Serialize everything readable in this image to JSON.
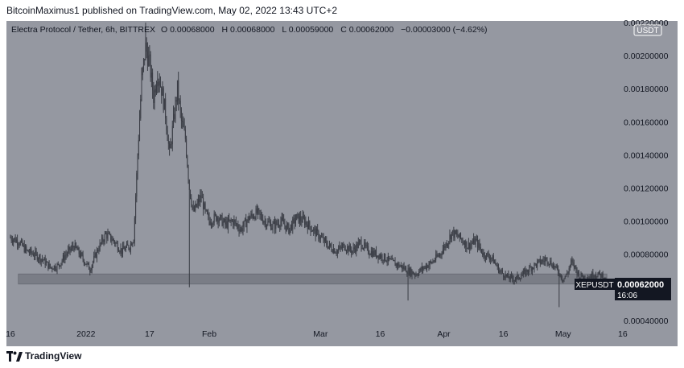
{
  "header": {
    "publisher_line": "BitcoinMaximus1 published on TradingView.com, May 02, 2022 13:43 UTC+2"
  },
  "legend": {
    "symbol_line": "Electra Protocol / Tether, 6h, BITTREX",
    "o_label": "O",
    "o_value": "0.00068000",
    "h_label": "H",
    "h_value": "0.00068000",
    "l_label": "L",
    "l_value": "0.00059000",
    "c_label": "C",
    "c_value": "0.00062000",
    "change": "−0.00003000 (−4.62%)"
  },
  "currency_badge": "USDT",
  "price_tag": {
    "symbol": "XEPUSDT",
    "price": "0.00062000",
    "countdown": "16:06"
  },
  "footer": {
    "brand": "TradingView"
  },
  "colors": {
    "plot_background": "#9598a1",
    "candles": "#3a3d45",
    "support_zone": "#7a7d86",
    "price_tag_bg": "#131722"
  },
  "chart_data": {
    "type": "candlestick",
    "instrument": "Electra Protocol / Tether",
    "ticker": "XEPUSDT",
    "timeframe": "6h",
    "exchange": "BITTREX",
    "y_axis": {
      "ticks": [
        "0.00040000",
        "0.00060000",
        "0.00080000",
        "0.00100000",
        "0.00120000",
        "0.00140000",
        "0.00160000",
        "0.00180000",
        "0.00200000",
        "0.00220000"
      ],
      "ylim": [
        0.00037,
        0.00221
      ]
    },
    "x_axis": {
      "ticks": [
        "16",
        "2022",
        "17",
        "Feb",
        "Mar",
        "16",
        "Apr",
        "16",
        "May",
        "16"
      ],
      "xlim_days": [
        -20,
        133
      ]
    },
    "support_zone": {
      "low": 0.00062,
      "high": 0.00068
    },
    "price_path": [
      {
        "day": -19,
        "price": 0.0009
      },
      {
        "day": -17,
        "price": 0.00088
      },
      {
        "day": -15,
        "price": 0.00082
      },
      {
        "day": -13,
        "price": 0.0008
      },
      {
        "day": -11,
        "price": 0.00077
      },
      {
        "day": -9,
        "price": 0.00072
      },
      {
        "day": -7,
        "price": 0.00073
      },
      {
        "day": -5,
        "price": 0.0008
      },
      {
        "day": -3,
        "price": 0.00085
      },
      {
        "day": -1,
        "price": 0.00078
      },
      {
        "day": 1,
        "price": 0.00071
      },
      {
        "day": 3,
        "price": 0.00083
      },
      {
        "day": 5,
        "price": 0.00092
      },
      {
        "day": 7,
        "price": 0.00088
      },
      {
        "day": 9,
        "price": 0.00082
      },
      {
        "day": 11,
        "price": 0.00085
      },
      {
        "day": 12,
        "price": 0.0009
      },
      {
        "day": 13,
        "price": 0.0014
      },
      {
        "day": 14,
        "price": 0.00185
      },
      {
        "day": 15,
        "price": 0.00205
      },
      {
        "day": 16,
        "price": 0.00195
      },
      {
        "day": 17,
        "price": 0.00175
      },
      {
        "day": 18,
        "price": 0.0019
      },
      {
        "day": 19,
        "price": 0.0018
      },
      {
        "day": 20,
        "price": 0.00165
      },
      {
        "day": 21,
        "price": 0.0014
      },
      {
        "day": 22,
        "price": 0.0016
      },
      {
        "day": 23,
        "price": 0.0018
      },
      {
        "day": 24,
        "price": 0.0016
      },
      {
        "day": 25,
        "price": 0.0015
      },
      {
        "day": 26,
        "price": 0.0012
      },
      {
        "day": 27,
        "price": 0.00105
      },
      {
        "day": 28,
        "price": 0.0011
      },
      {
        "day": 29,
        "price": 0.00115
      },
      {
        "day": 30,
        "price": 0.00105
      },
      {
        "day": 31,
        "price": 0.001
      },
      {
        "day": 33,
        "price": 0.00103
      },
      {
        "day": 35,
        "price": 0.00098
      },
      {
        "day": 37,
        "price": 0.001
      },
      {
        "day": 39,
        "price": 0.00095
      },
      {
        "day": 41,
        "price": 0.00102
      },
      {
        "day": 43,
        "price": 0.00105
      },
      {
        "day": 45,
        "price": 0.001
      },
      {
        "day": 47,
        "price": 0.00097
      },
      {
        "day": 49,
        "price": 0.001
      },
      {
        "day": 51,
        "price": 0.00095
      },
      {
        "day": 53,
        "price": 0.00102
      },
      {
        "day": 55,
        "price": 0.001
      },
      {
        "day": 57,
        "price": 0.00095
      },
      {
        "day": 59,
        "price": 0.0009
      },
      {
        "day": 61,
        "price": 0.00085
      },
      {
        "day": 63,
        "price": 0.00082
      },
      {
        "day": 65,
        "price": 0.00085
      },
      {
        "day": 67,
        "price": 0.00082
      },
      {
        "day": 69,
        "price": 0.00087
      },
      {
        "day": 71,
        "price": 0.00082
      },
      {
        "day": 73,
        "price": 0.0008
      },
      {
        "day": 75,
        "price": 0.00078
      },
      {
        "day": 77,
        "price": 0.00075
      },
      {
        "day": 79,
        "price": 0.00073
      },
      {
        "day": 81,
        "price": 0.0007
      },
      {
        "day": 83,
        "price": 0.00068
      },
      {
        "day": 85,
        "price": 0.00072
      },
      {
        "day": 87,
        "price": 0.00075
      },
      {
        "day": 89,
        "price": 0.0008
      },
      {
        "day": 91,
        "price": 0.00088
      },
      {
        "day": 92,
        "price": 0.00093
      },
      {
        "day": 94,
        "price": 0.0009
      },
      {
        "day": 96,
        "price": 0.00085
      },
      {
        "day": 98,
        "price": 0.00088
      },
      {
        "day": 100,
        "price": 0.0008
      },
      {
        "day": 102,
        "price": 0.00078
      },
      {
        "day": 104,
        "price": 0.0007
      },
      {
        "day": 106,
        "price": 0.00066
      },
      {
        "day": 108,
        "price": 0.00065
      },
      {
        "day": 110,
        "price": 0.00068
      },
      {
        "day": 112,
        "price": 0.00072
      },
      {
        "day": 114,
        "price": 0.00075
      },
      {
        "day": 116,
        "price": 0.00077
      },
      {
        "day": 118,
        "price": 0.00072
      },
      {
        "day": 120,
        "price": 0.00065
      },
      {
        "day": 121,
        "price": 0.00068
      },
      {
        "day": 122,
        "price": 0.00075
      },
      {
        "day": 123,
        "price": 0.00072
      },
      {
        "day": 124,
        "price": 0.00067
      },
      {
        "day": 126,
        "price": 0.00066
      },
      {
        "day": 128,
        "price": 0.00068
      },
      {
        "day": 130,
        "price": 0.00067
      },
      {
        "day": 131,
        "price": 0.00062
      }
    ],
    "notable_wicks": [
      {
        "day": 15,
        "high": 0.0022
      },
      {
        "day": 26,
        "low": 0.0006
      },
      {
        "day": 81,
        "low": 0.00052
      },
      {
        "day": 119,
        "low": 0.00048
      }
    ],
    "last": {
      "open": 0.00068,
      "high": 0.00068,
      "low": 0.00059,
      "close": 0.00062
    }
  }
}
